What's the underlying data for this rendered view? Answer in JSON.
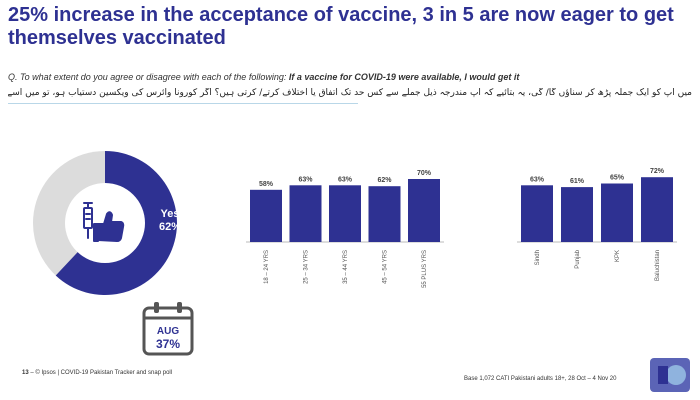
{
  "title": "25% increase in the acceptance of vaccine, 3 in 5 are now eager to get themselves vaccinated",
  "question_prefix": "Q. To what extent do you agree or disagree with each of the following: ",
  "question_bold": "If a vaccine for COVID-19 were available, I would get it",
  "question_urdu": "میں آپ کو ایک جملہ پڑھ کر سناؤں گا/ گی، یہ بتائیے کہ آپ مندرجہ ذیل جملے سے کس حد تک اتفاق یا اختلاف کرتے/ کرتی ہیں؟ اگر کورونا وائرس کی ویکسین دستیاب ہو، تو میں اسے استعمال کروں گا/ گی",
  "donut": {
    "label": "Yes",
    "value_text": "62%",
    "value": 62,
    "icon": "vaccine-thumbs-up-icon"
  },
  "previous": {
    "month": "AUG",
    "value_text": "37%",
    "icon": "calendar-icon"
  },
  "colors": {
    "bar": "#2e3192",
    "donut_rest": "#dcdcdc",
    "title": "#2e3192"
  },
  "chart_data": [
    {
      "type": "bar",
      "categories": [
        "18 – 24 YRS",
        "25 – 34 YRS",
        "35 – 44 YRS",
        "45 – 54 YRS",
        "55 PLUS YRS"
      ],
      "values": [
        58,
        63,
        63,
        62,
        70
      ],
      "value_labels": [
        "58%",
        "63%",
        "63%",
        "62%",
        "70%"
      ]
    },
    {
      "type": "bar",
      "categories": [
        "Sindh",
        "Punjab",
        "KPK",
        "Baluchistan"
      ],
      "values": [
        63,
        61,
        65,
        72
      ],
      "value_labels": [
        "63%",
        "61%",
        "65%",
        "72%"
      ]
    }
  ],
  "footer": {
    "page_number": "13",
    "source": " – © Ipsos | COVID-19 Pakistan Tracker and snap poll",
    "base": "Base 1,072 CATI Pakistani adults 18+, 28 Oct – 4 Nov 20"
  }
}
